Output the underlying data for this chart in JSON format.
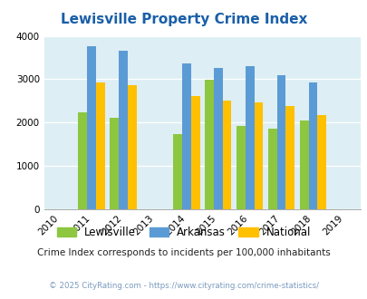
{
  "title": "Lewisville Property Crime Index",
  "years": [
    2010,
    2011,
    2012,
    2013,
    2014,
    2015,
    2016,
    2017,
    2018,
    2019
  ],
  "data_years": [
    2011,
    2012,
    2014,
    2015,
    2016,
    2017,
    2018
  ],
  "lewisville": [
    2230,
    2110,
    1730,
    2980,
    1920,
    1870,
    2050
  ],
  "arkansas": [
    3760,
    3650,
    3360,
    3250,
    3300,
    3090,
    2920
  ],
  "national": [
    2920,
    2870,
    2610,
    2510,
    2470,
    2390,
    2180
  ],
  "lewisville_color": "#8dc63f",
  "arkansas_color": "#5b9bd5",
  "national_color": "#ffc000",
  "bg_color": "#ddeef4",
  "ylim": [
    0,
    4000
  ],
  "yticks": [
    0,
    1000,
    2000,
    3000,
    4000
  ],
  "bar_width": 0.28,
  "subtitle": "Crime Index corresponds to incidents per 100,000 inhabitants",
  "footer": "© 2025 CityRating.com - https://www.cityrating.com/crime-statistics/",
  "title_color": "#1a5fa8",
  "subtitle_color": "#222222",
  "footer_color": "#7a9abf"
}
